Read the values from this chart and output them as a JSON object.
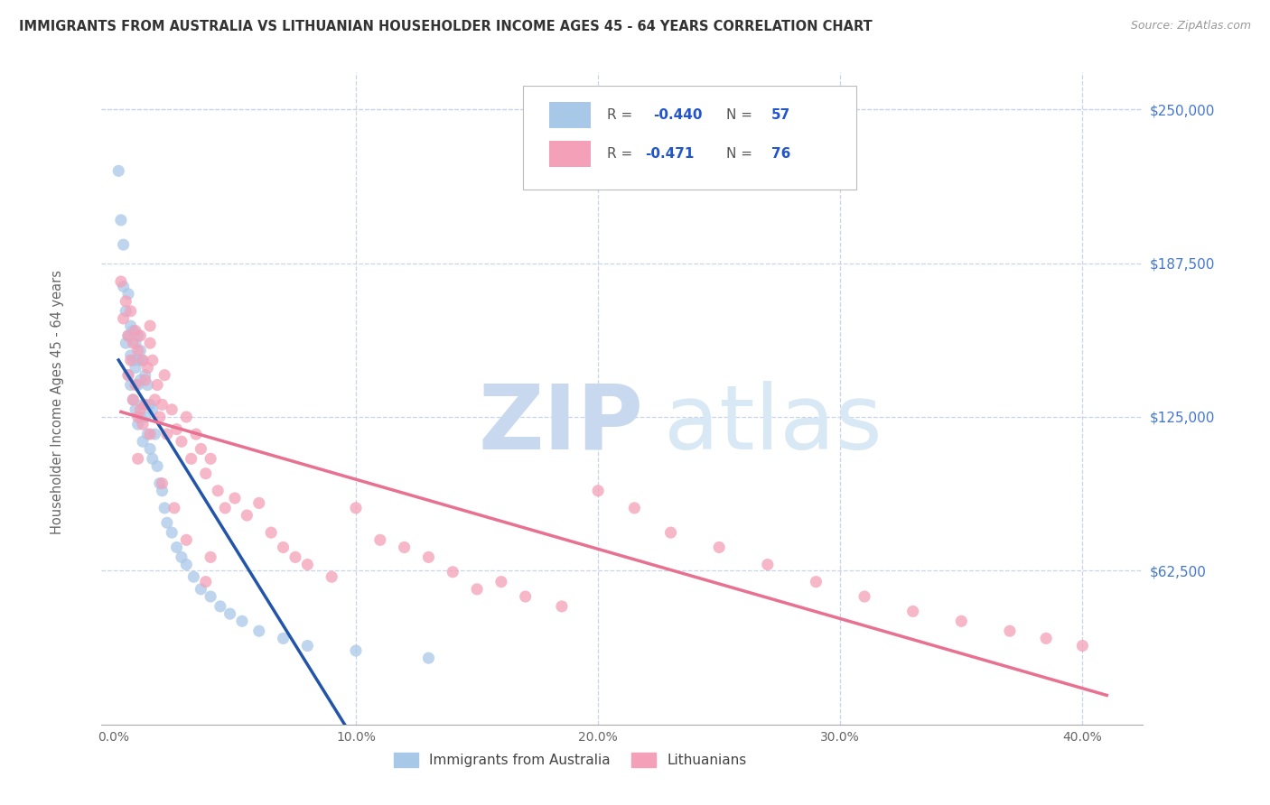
{
  "title": "IMMIGRANTS FROM AUSTRALIA VS LITHUANIAN HOUSEHOLDER INCOME AGES 45 - 64 YEARS CORRELATION CHART",
  "source": "Source: ZipAtlas.com",
  "xlabel_ticks": [
    "0.0%",
    "10.0%",
    "20.0%",
    "30.0%",
    "40.0%"
  ],
  "xlabel_tick_vals": [
    0.0,
    0.1,
    0.2,
    0.3,
    0.4
  ],
  "ylabel": "Householder Income Ages 45 - 64 years",
  "ylabel_ticks": [
    "$62,500",
    "$125,000",
    "$187,500",
    "$250,000"
  ],
  "ylabel_tick_vals": [
    62500,
    125000,
    187500,
    250000
  ],
  "ylim": [
    0,
    265000
  ],
  "xlim": [
    -0.005,
    0.425
  ],
  "color_blue": "#a8c8e8",
  "color_pink": "#f4a0b8",
  "line_blue": "#2255aa",
  "line_pink": "#e87090",
  "line_gray": "#c8c8c8",
  "grid_color": "#c8d4e8",
  "background_color": "#ffffff",
  "aus_x": [
    0.002,
    0.003,
    0.004,
    0.004,
    0.005,
    0.005,
    0.006,
    0.006,
    0.006,
    0.007,
    0.007,
    0.007,
    0.008,
    0.008,
    0.008,
    0.009,
    0.009,
    0.009,
    0.01,
    0.01,
    0.01,
    0.01,
    0.011,
    0.011,
    0.011,
    0.012,
    0.012,
    0.012,
    0.013,
    0.013,
    0.014,
    0.014,
    0.015,
    0.015,
    0.016,
    0.016,
    0.017,
    0.018,
    0.019,
    0.02,
    0.021,
    0.022,
    0.024,
    0.026,
    0.028,
    0.03,
    0.033,
    0.036,
    0.04,
    0.044,
    0.048,
    0.053,
    0.06,
    0.07,
    0.08,
    0.1,
    0.13
  ],
  "aus_y": [
    225000,
    205000,
    195000,
    178000,
    168000,
    155000,
    175000,
    158000,
    142000,
    162000,
    150000,
    138000,
    160000,
    148000,
    132000,
    155000,
    145000,
    128000,
    158000,
    148000,
    138000,
    122000,
    152000,
    140000,
    125000,
    148000,
    130000,
    115000,
    142000,
    125000,
    138000,
    118000,
    130000,
    112000,
    128000,
    108000,
    118000,
    105000,
    98000,
    95000,
    88000,
    82000,
    78000,
    72000,
    68000,
    65000,
    60000,
    55000,
    52000,
    48000,
    45000,
    42000,
    38000,
    35000,
    32000,
    30000,
    27000
  ],
  "lith_x": [
    0.003,
    0.004,
    0.005,
    0.006,
    0.006,
    0.007,
    0.007,
    0.008,
    0.008,
    0.009,
    0.009,
    0.01,
    0.01,
    0.011,
    0.011,
    0.012,
    0.012,
    0.013,
    0.014,
    0.015,
    0.015,
    0.016,
    0.017,
    0.018,
    0.019,
    0.02,
    0.021,
    0.022,
    0.024,
    0.026,
    0.028,
    0.03,
    0.032,
    0.034,
    0.036,
    0.038,
    0.04,
    0.043,
    0.046,
    0.05,
    0.055,
    0.06,
    0.065,
    0.07,
    0.075,
    0.08,
    0.09,
    0.1,
    0.11,
    0.12,
    0.13,
    0.14,
    0.15,
    0.16,
    0.17,
    0.185,
    0.2,
    0.215,
    0.23,
    0.25,
    0.27,
    0.29,
    0.31,
    0.33,
    0.35,
    0.37,
    0.385,
    0.4,
    0.01,
    0.02,
    0.025,
    0.03,
    0.015,
    0.013,
    0.04,
    0.038
  ],
  "lith_y": [
    180000,
    165000,
    172000,
    158000,
    142000,
    168000,
    148000,
    155000,
    132000,
    160000,
    138000,
    152000,
    125000,
    158000,
    128000,
    148000,
    122000,
    140000,
    145000,
    162000,
    155000,
    148000,
    132000,
    138000,
    125000,
    130000,
    142000,
    118000,
    128000,
    120000,
    115000,
    125000,
    108000,
    118000,
    112000,
    102000,
    108000,
    95000,
    88000,
    92000,
    85000,
    90000,
    78000,
    72000,
    68000,
    65000,
    60000,
    88000,
    75000,
    72000,
    68000,
    62000,
    55000,
    58000,
    52000,
    48000,
    95000,
    88000,
    78000,
    72000,
    65000,
    58000,
    52000,
    46000,
    42000,
    38000,
    35000,
    32000,
    108000,
    98000,
    88000,
    75000,
    118000,
    130000,
    68000,
    58000
  ]
}
